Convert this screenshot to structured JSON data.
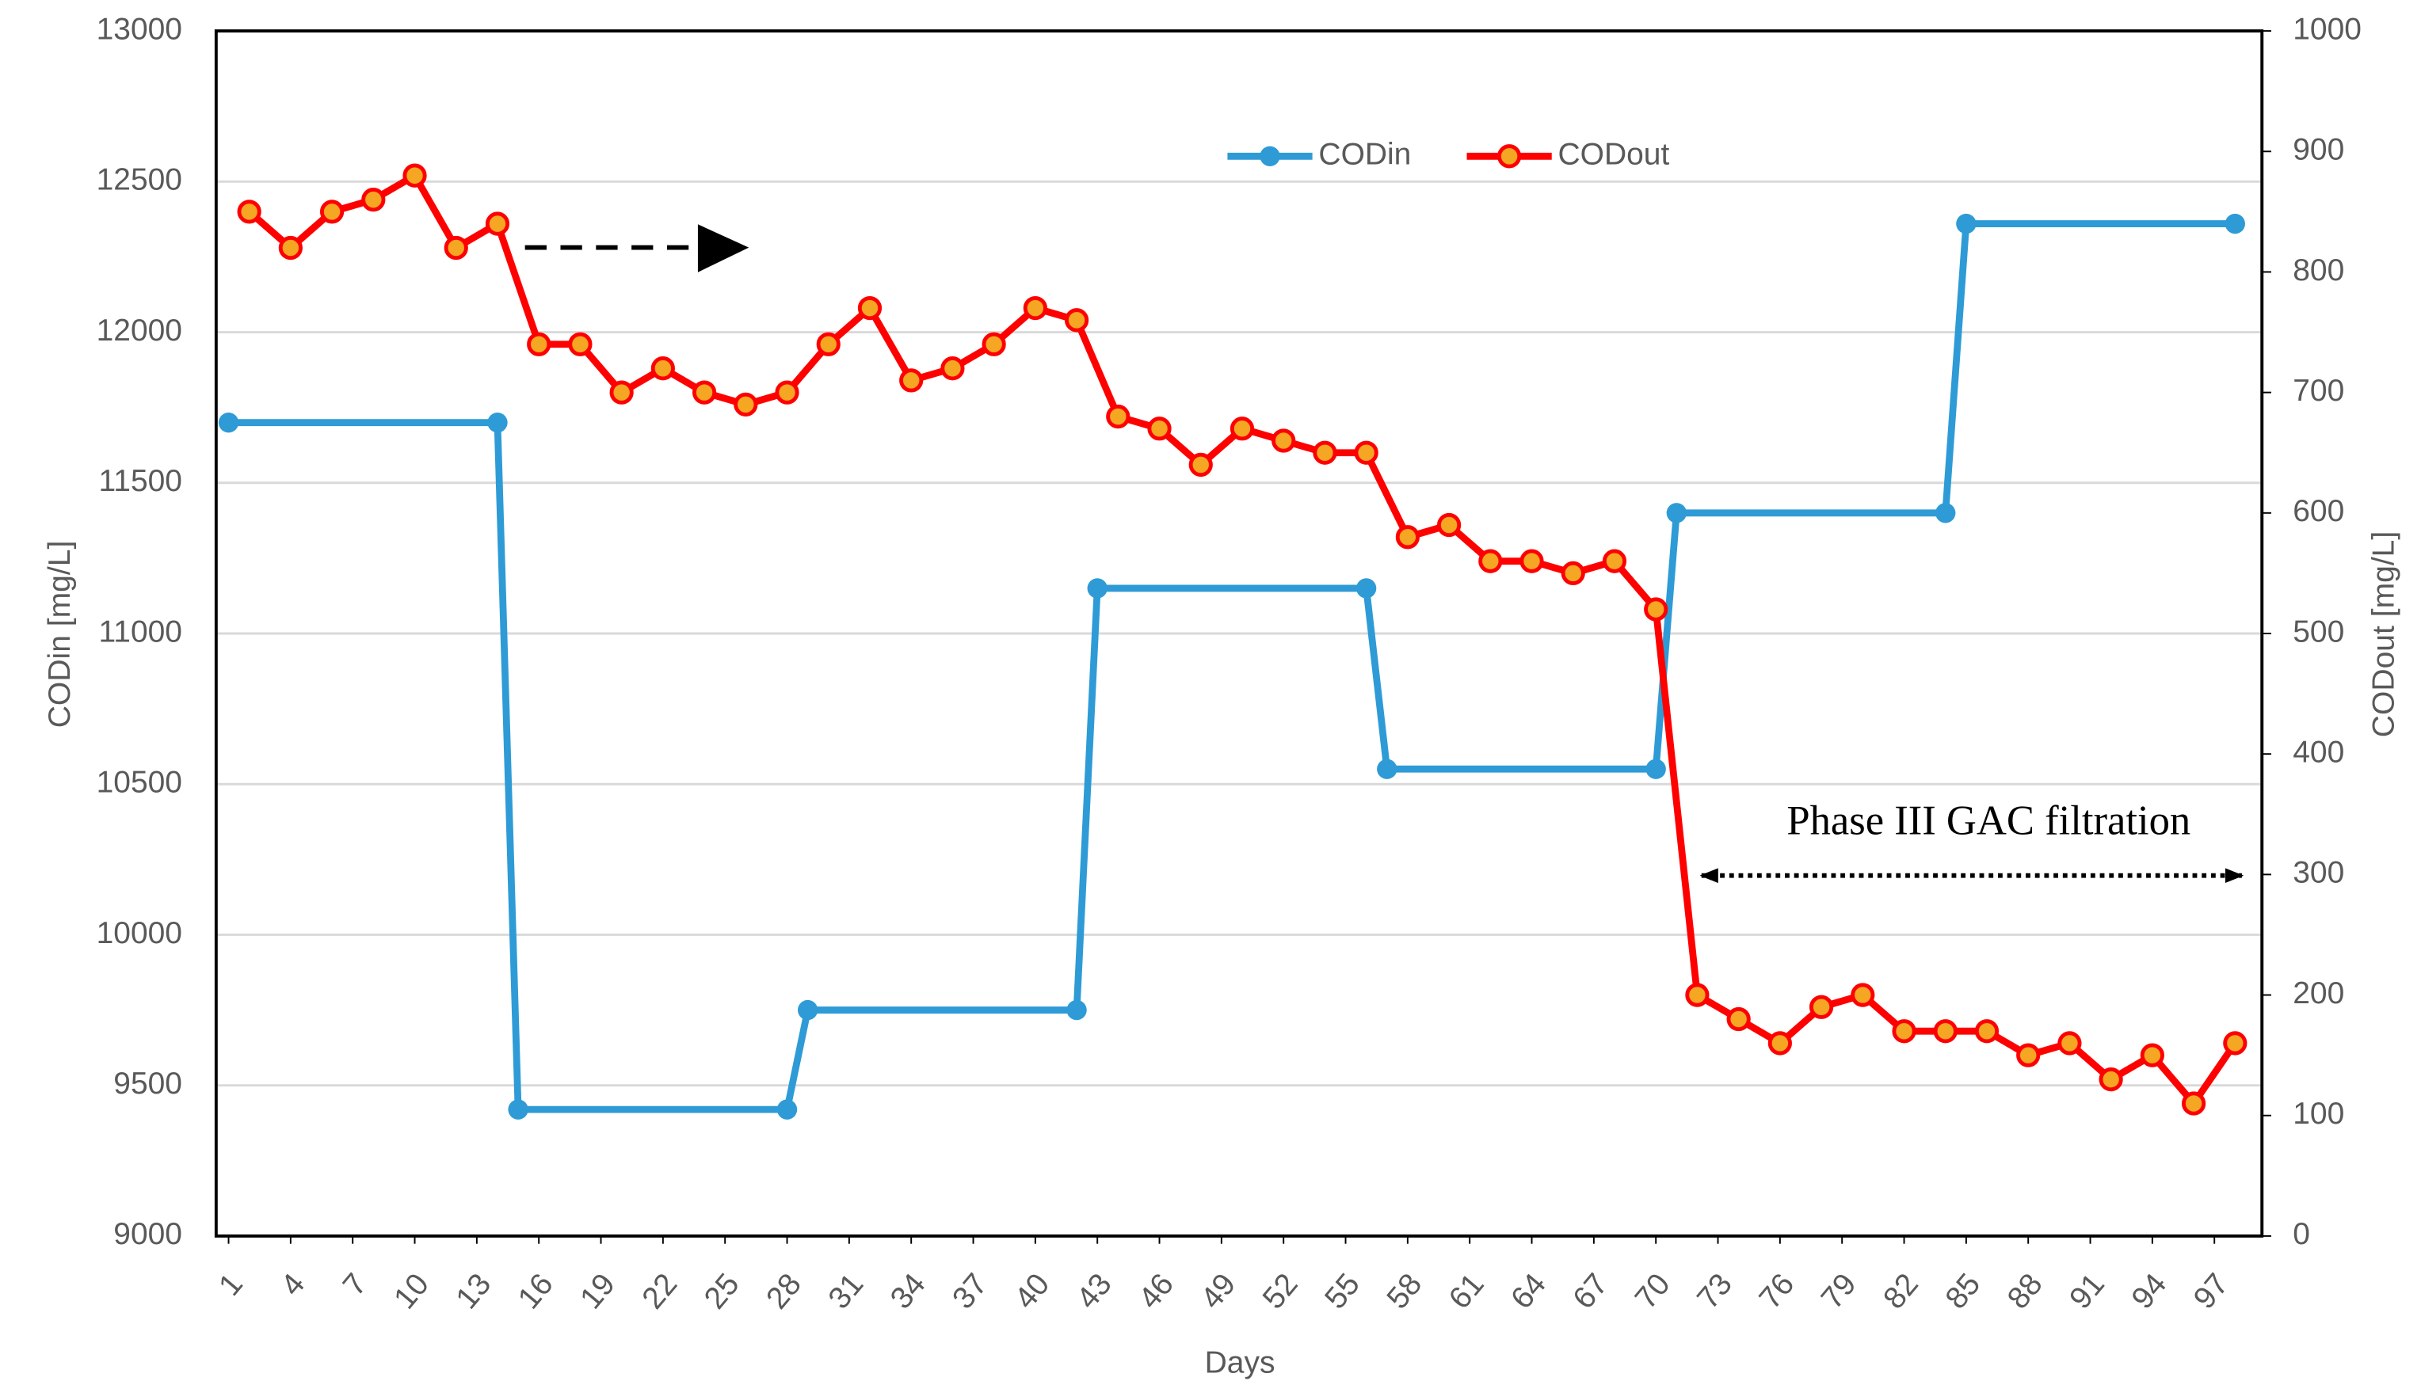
{
  "chart_data": {
    "type": "line",
    "x_label": "Days",
    "y_label": "CODin [mg/L]",
    "y2_label": "CODout [mg/L]",
    "annotation": "Phase III GAC filtration",
    "xlim": [
      0.4,
      99.3
    ],
    "xticks": [
      1,
      4,
      7,
      10,
      13,
      16,
      19,
      22,
      25,
      28,
      31,
      34,
      37,
      40,
      43,
      46,
      49,
      52,
      55,
      58,
      61,
      64,
      67,
      70,
      73,
      76,
      79,
      82,
      85,
      88,
      91,
      94,
      97
    ],
    "ylim": [
      9000,
      13000
    ],
    "yticks": [
      9000,
      9500,
      10000,
      10500,
      11000,
      11500,
      12000,
      12500,
      13000
    ],
    "y2lim": [
      0,
      1000
    ],
    "y2ticks": [
      0,
      100,
      200,
      300,
      400,
      500,
      600,
      700,
      800,
      900,
      1000
    ],
    "grid": true,
    "series": [
      {
        "name": "CODin",
        "color": "#2e9bd6",
        "x": [
          1,
          14,
          15,
          28,
          29,
          42,
          43,
          56,
          57,
          70,
          71,
          84,
          85,
          98
        ],
        "values": [
          11700,
          11700,
          9420,
          9420,
          9750,
          9750,
          11150,
          11150,
          10550,
          10550,
          11400,
          11400,
          12360,
          12360
        ]
      },
      {
        "name": "CODout",
        "color": "#ff0000",
        "axis": "y2",
        "x": [
          2,
          4,
          6,
          8,
          10,
          12,
          14,
          16,
          18,
          20,
          22,
          24,
          26,
          28,
          30,
          32,
          34,
          36,
          38,
          40,
          42,
          44,
          46,
          48,
          50,
          52,
          54,
          56,
          58,
          60,
          62,
          64,
          66,
          68,
          70,
          72,
          74,
          76,
          78,
          80,
          82,
          84,
          86,
          88,
          90,
          92,
          94,
          96,
          98
        ],
        "values": [
          850,
          820,
          850,
          860,
          880,
          820,
          840,
          740,
          740,
          700,
          720,
          700,
          690,
          700,
          740,
          770,
          710,
          720,
          740,
          770,
          760,
          680,
          670,
          640,
          670,
          660,
          650,
          650,
          580,
          590,
          560,
          560,
          550,
          560,
          520,
          200,
          180,
          160,
          190,
          200,
          170,
          170,
          170,
          150,
          160,
          130,
          150,
          110,
          160
        ]
      }
    ]
  }
}
